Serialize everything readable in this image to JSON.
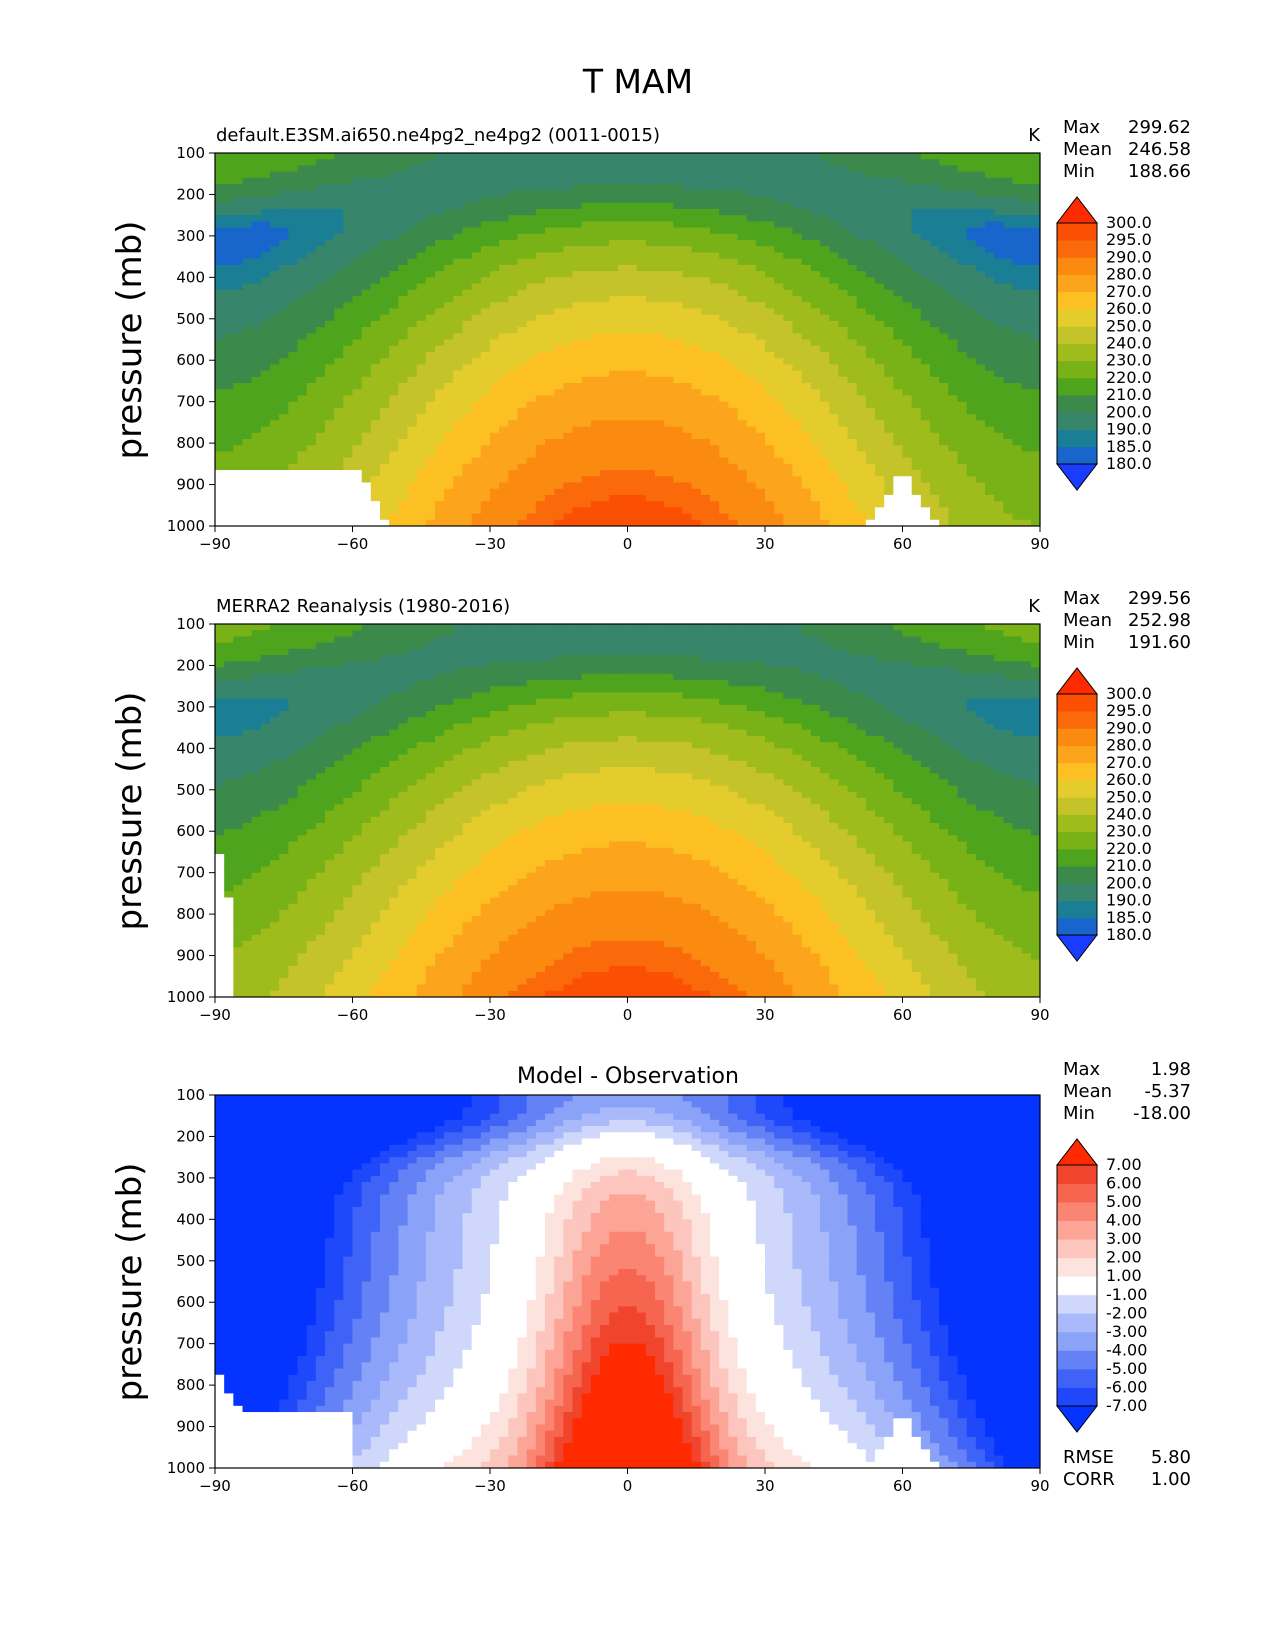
{
  "figure": {
    "title": "T MAM",
    "colors": {
      "land_mask": "#ffffff",
      "frame": "#000000"
    }
  },
  "chart_data": [
    {
      "type": "contourf",
      "id": "model",
      "title_left": "default.E3SM.ai650.ne4pg2_ne4pg2 (0011-0015)",
      "title_center": "",
      "units": "K",
      "stats": [
        {
          "label": "Max",
          "value": "299.62"
        },
        {
          "label": "Mean",
          "value": "246.58"
        },
        {
          "label": "Min",
          "value": "188.66"
        }
      ],
      "bottom_stats": [],
      "xlabel": "",
      "ylabel": "pressure (mb)",
      "xlim": [
        -90,
        90
      ],
      "ylim": [
        1000,
        100
      ],
      "xticks": [
        -90,
        -60,
        -30,
        0,
        30,
        60,
        90
      ],
      "xtick_labels": [
        "−90",
        "−60",
        "−30",
        "0",
        "30",
        "60",
        "90"
      ],
      "yticks": [
        100,
        200,
        300,
        400,
        500,
        600,
        700,
        800,
        900,
        1000
      ],
      "ytick_labels": [
        "100",
        "200",
        "300",
        "400",
        "500",
        "600",
        "700",
        "800",
        "900",
        "1000"
      ],
      "levels": [
        180,
        185,
        190,
        200,
        210,
        220,
        230,
        240,
        250,
        260,
        270,
        280,
        290,
        295,
        300
      ],
      "level_labels": [
        "180.0",
        "185.0",
        "190.0",
        "200.0",
        "210.0",
        "220.0",
        "230.0",
        "240.0",
        "250.0",
        "260.0",
        "270.0",
        "280.0",
        "290.0",
        "295.0",
        "300.0"
      ],
      "colors": [
        "#1a3cff",
        "#1866cc",
        "#1a7e94",
        "#37856a",
        "#3b8a4c",
        "#4ea41c",
        "#79b216",
        "#a0bc1c",
        "#c4c42a",
        "#e4cc2c",
        "#fcc022",
        "#fca41b",
        "#fb8a10",
        "#fb6a0a",
        "#fb5004",
        "#ff3a02",
        "#ff2b00"
      ],
      "extend": "both",
      "field": {
        "T0": 292,
        "Tp": 204,
        "pt": 100,
        "cosp": 1.7,
        "beta": 0.65,
        "strat": 92,
        "ps": 1.2,
        "bias": -2
      },
      "mask": {
        "type": "model"
      }
    },
    {
      "type": "contourf",
      "id": "obs",
      "title_left": "MERRA2 Reanalysis (1980-2016)",
      "title_center": "",
      "units": "K",
      "stats": [
        {
          "label": "Max",
          "value": "299.56"
        },
        {
          "label": "Mean",
          "value": "252.98"
        },
        {
          "label": "Min",
          "value": "191.60"
        }
      ],
      "bottom_stats": [],
      "xlabel": "",
      "ylabel": "pressure (mb)",
      "xlim": [
        -90,
        90
      ],
      "ylim": [
        1000,
        100
      ],
      "xticks": [
        -90,
        -60,
        -30,
        0,
        30,
        60,
        90
      ],
      "xtick_labels": [
        "−90",
        "−60",
        "−30",
        "0",
        "30",
        "60",
        "90"
      ],
      "yticks": [
        100,
        200,
        300,
        400,
        500,
        600,
        700,
        800,
        900,
        1000
      ],
      "ytick_labels": [
        "100",
        "200",
        "300",
        "400",
        "500",
        "600",
        "700",
        "800",
        "900",
        "1000"
      ],
      "levels": [
        180,
        185,
        190,
        200,
        210,
        220,
        230,
        240,
        250,
        260,
        270,
        280,
        290,
        295,
        300
      ],
      "level_labels": [
        "180.0",
        "185.0",
        "190.0",
        "200.0",
        "210.0",
        "220.0",
        "230.0",
        "240.0",
        "250.0",
        "260.0",
        "270.0",
        "280.0",
        "290.0",
        "295.0",
        "300.0"
      ],
      "colors": [
        "#1a3cff",
        "#1866cc",
        "#1a7e94",
        "#37856a",
        "#3b8a4c",
        "#4ea41c",
        "#79b216",
        "#a0bc1c",
        "#c4c42a",
        "#e4cc2c",
        "#fcc022",
        "#fca41b",
        "#fb8a10",
        "#fb6a0a",
        "#fb5004",
        "#ff3a02",
        "#ff2b00"
      ],
      "extend": "both",
      "field": {
        "T0": 292,
        "Tp": 206,
        "pt": 100,
        "cosp": 1.6,
        "beta": 0.55,
        "strat": 94,
        "ps": 1.2,
        "bias": 3
      },
      "mask": {
        "type": "obs"
      }
    },
    {
      "type": "contourf",
      "id": "diff",
      "title_left": "",
      "title_center": "Model - Observation",
      "units": "",
      "stats": [
        {
          "label": "Max",
          "value": "1.98"
        },
        {
          "label": "Mean",
          "value": "-5.37"
        },
        {
          "label": "Min",
          "value": "-18.00"
        }
      ],
      "bottom_stats": [
        {
          "label": "RMSE",
          "value": "5.80"
        },
        {
          "label": "CORR",
          "value": "1.00"
        }
      ],
      "xlabel": "",
      "ylabel": "pressure (mb)",
      "xlim": [
        -90,
        90
      ],
      "ylim": [
        1000,
        100
      ],
      "xticks": [
        -90,
        -60,
        -30,
        0,
        30,
        60,
        90
      ],
      "xtick_labels": [
        "−90",
        "−60",
        "−30",
        "0",
        "30",
        "60",
        "90"
      ],
      "yticks": [
        100,
        200,
        300,
        400,
        500,
        600,
        700,
        800,
        900,
        1000
      ],
      "ytick_labels": [
        "100",
        "200",
        "300",
        "400",
        "500",
        "600",
        "700",
        "800",
        "900",
        "1000"
      ],
      "levels": [
        -7,
        -6,
        -5,
        -4,
        -3,
        -2,
        -1,
        1,
        2,
        3,
        4,
        5,
        6,
        7
      ],
      "level_labels": [
        "-7.00",
        "-6.00",
        "-5.00",
        "-4.00",
        "-3.00",
        "-2.00",
        "-1.00",
        "1.00",
        "2.00",
        "3.00",
        "4.00",
        "5.00",
        "6.00",
        "7.00"
      ],
      "colors": [
        "#0533ff",
        "#1f48fb",
        "#3f63f6",
        "#6482f5",
        "#8aa3f8",
        "#aab9f9",
        "#cfd8fb",
        "#ffffff",
        "#fde3de",
        "#fcc5bd",
        "#fca597",
        "#fb8573",
        "#f6654f",
        "#f1442c",
        "#ff2a00"
      ],
      "extend": "both",
      "field": {
        "mode": "diff"
      },
      "mask": {
        "type": "diff"
      }
    }
  ]
}
